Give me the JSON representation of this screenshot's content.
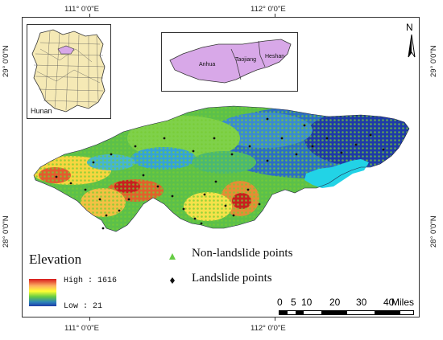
{
  "coords": {
    "top_left": "111° 0'0\"E",
    "top_right": "112° 0'0\"E",
    "bottom_left": "111° 0'0\"E",
    "bottom_right": "112° 0'0\"E",
    "left_top": "29° 0'0\"N",
    "left_bottom": "28° 0'0\"N",
    "right_top": "29° 0'0\"N",
    "right_bottom": "28° 0'0\"N"
  },
  "inset_province": {
    "label": "Hunan",
    "fill": "#f5e9b5",
    "highlight": "#d8a8e8"
  },
  "inset_county": {
    "names": [
      "Anhua",
      "Taojiang",
      "Heshan"
    ],
    "fill": "#d8a8e8"
  },
  "north_arrow": {
    "label": "N"
  },
  "legend": {
    "title": "Elevation",
    "high_label": "High : 1616",
    "low_label": "Low : 21",
    "non_landslide_label": "Non-landslide points",
    "landslide_label": "Landslide points"
  },
  "scale": {
    "ticks": [
      "0",
      "5",
      "10",
      "20",
      "30",
      "40"
    ],
    "unit": "Miles"
  },
  "colors": {
    "high": "#d7191c",
    "mid_high": "#fdae61",
    "mid": "#ffff33",
    "mid_low": "#66cc44",
    "low": "#2b83ba",
    "lowest": "#1e3aa8",
    "water": "#22d3e6",
    "non_landslide_point": "#66cc44",
    "landslide_point": "#111111"
  }
}
